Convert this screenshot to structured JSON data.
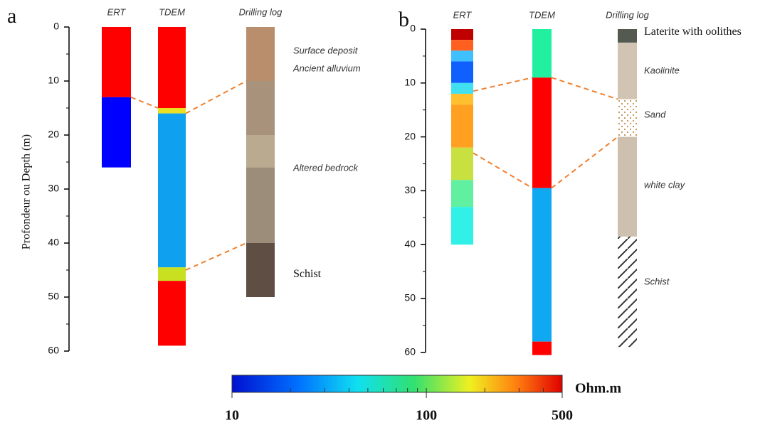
{
  "panels": [
    {
      "label": "a",
      "ylabel": "Profondeur ou Depth (m)",
      "ylim": [
        0,
        60
      ],
      "yticks": [
        0,
        10,
        20,
        30,
        40,
        50,
        60
      ],
      "columns": [
        {
          "title": "ERT",
          "segments": [
            {
              "top": 0,
              "bottom": 13,
              "color": "#ff0000"
            },
            {
              "top": 13,
              "bottom": 26,
              "color": "#0000ff"
            }
          ]
        },
        {
          "title": "TDEM",
          "segments": [
            {
              "top": 0,
              "bottom": 15,
              "color": "#ff0000"
            },
            {
              "top": 15,
              "bottom": 16,
              "color": "#e8e020"
            },
            {
              "top": 16,
              "bottom": 44.5,
              "color": "#10a0f0"
            },
            {
              "top": 44.5,
              "bottom": 47,
              "color": "#c8e020"
            },
            {
              "top": 47,
              "bottom": 59,
              "color": "#ff0000"
            }
          ]
        }
      ],
      "log": {
        "title": "Drilling log",
        "layers": [
          {
            "top": 0,
            "bottom": 10,
            "color": "#b88e6c",
            "pattern": "solid"
          },
          {
            "top": 10,
            "bottom": 20,
            "color": "#a8927c",
            "pattern": "solid"
          },
          {
            "top": 20,
            "bottom": 26,
            "color": "#b9aa90",
            "pattern": "solid"
          },
          {
            "top": 26,
            "bottom": 40,
            "color": "#9c8c7a",
            "pattern": "solid"
          },
          {
            "top": 40,
            "bottom": 50,
            "color": "#5e4e44",
            "pattern": "solid"
          }
        ],
        "labels": [
          {
            "text": "Surface deposit",
            "depth": 4.5
          },
          {
            "text": "Ancient alluvium",
            "depth": 7.8
          },
          {
            "text": "Altered bedrock",
            "depth": 26.2
          },
          {
            "text": "Schist",
            "depth": 45.8
          }
        ]
      },
      "links": [
        {
          "depths": [
            13,
            15
          ]
        },
        {
          "depths": [
            16,
            10
          ]
        },
        {
          "depths": [
            45,
            40
          ]
        }
      ]
    },
    {
      "label": "b",
      "ylim": [
        0,
        60
      ],
      "yticks": [
        0,
        10,
        20,
        30,
        40,
        50,
        60
      ],
      "columns": [
        {
          "title": "ERT",
          "segments": [
            {
              "top": 0,
              "bottom": 2,
              "color": "#c00000"
            },
            {
              "top": 2,
              "bottom": 4,
              "color": "#ff6020"
            },
            {
              "top": 4,
              "bottom": 6,
              "color": "#40c0ff"
            },
            {
              "top": 6,
              "bottom": 10,
              "color": "#1060ff"
            },
            {
              "top": 10,
              "bottom": 12,
              "color": "#40e0f0"
            },
            {
              "top": 12,
              "bottom": 14,
              "color": "#ffc030"
            },
            {
              "top": 14,
              "bottom": 22,
              "color": "#ffa020"
            },
            {
              "top": 22,
              "bottom": 28,
              "color": "#c8e040"
            },
            {
              "top": 28,
              "bottom": 33,
              "color": "#60f0a0"
            },
            {
              "top": 33,
              "bottom": 40,
              "color": "#30f0e8"
            }
          ]
        },
        {
          "title": "TDEM",
          "segments": [
            {
              "top": 0,
              "bottom": 9,
              "color": "#20f0a0"
            },
            {
              "top": 9,
              "bottom": 29.5,
              "color": "#ff0000"
            },
            {
              "top": 29.5,
              "bottom": 58,
              "color": "#10a8f0"
            },
            {
              "top": 58,
              "bottom": 60.5,
              "color": "#ff0000"
            }
          ]
        }
      ],
      "log": {
        "title": "Drilling log",
        "layers": [
          {
            "top": 0,
            "bottom": 2.5,
            "color": "#555a50",
            "pattern": "solid"
          },
          {
            "top": 2.5,
            "bottom": 13,
            "color": "#d2c4b2",
            "pattern": "solid"
          },
          {
            "top": 13,
            "bottom": 20,
            "color": "#ffffff",
            "pattern": "dots"
          },
          {
            "top": 20,
            "bottom": 38.5,
            "color": "#cdc0ae",
            "pattern": "solid"
          },
          {
            "top": 38.5,
            "bottom": 59,
            "color": "#ffffff",
            "pattern": "hatch"
          }
        ],
        "labels": [
          {
            "text": "Laterite with oolithes",
            "depth": 0.6
          },
          {
            "text": "Kaolinite",
            "depth": 7.8
          },
          {
            "text": "Sand",
            "depth": 16
          },
          {
            "text": "white clay",
            "depth": 29
          },
          {
            "text": "Schist",
            "depth": 47
          }
        ]
      },
      "links": [
        {
          "depths": [
            11.5,
            9
          ]
        },
        {
          "depths": [
            9,
            13
          ]
        },
        {
          "depths": [
            23,
            29.5
          ]
        },
        {
          "depths": [
            29.5,
            20
          ]
        }
      ]
    }
  ],
  "colorbar": {
    "unit": "Ohm.m",
    "range": [
      10,
      500
    ],
    "log": true,
    "ticks": [
      10,
      100,
      500
    ]
  }
}
